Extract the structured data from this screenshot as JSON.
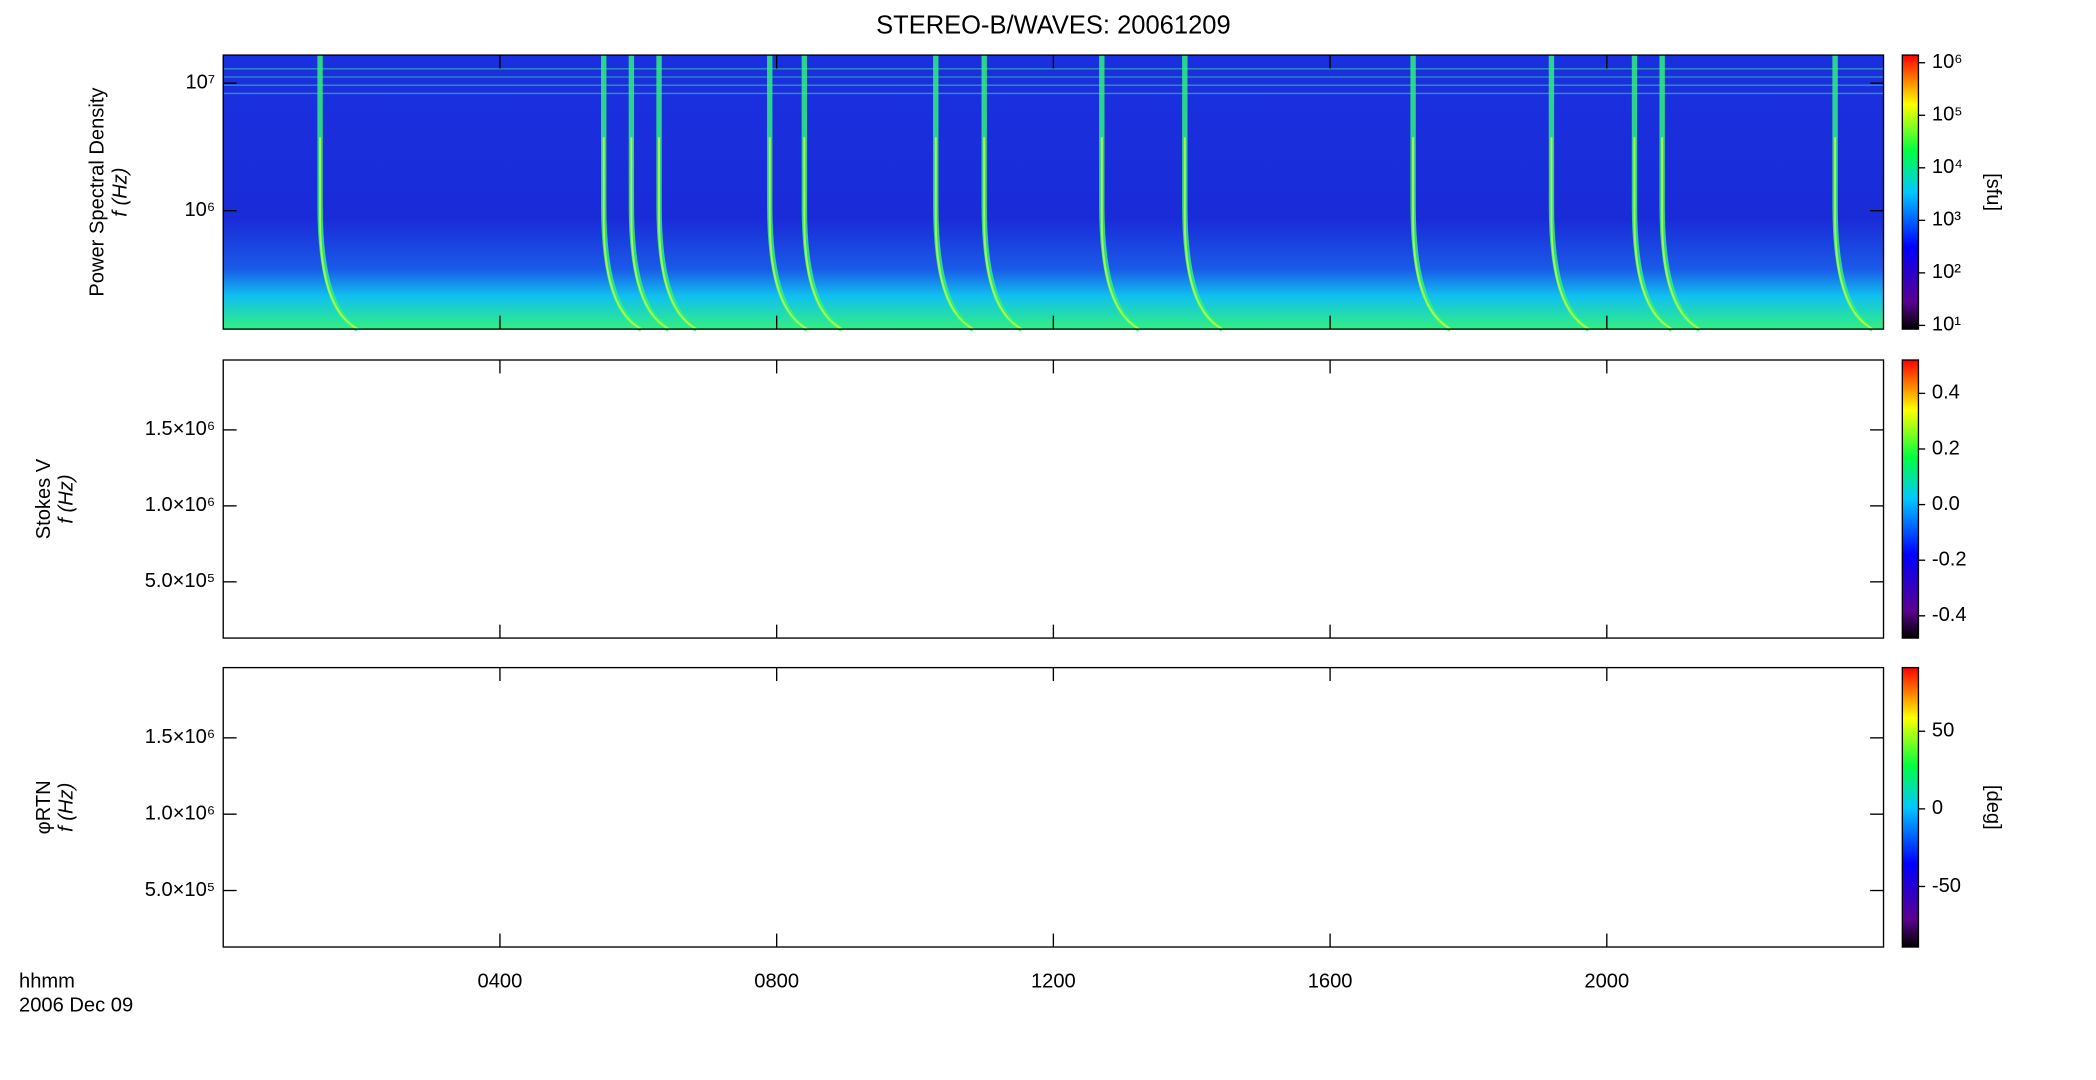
{
  "chart_data": [
    {
      "type": "spectrogram",
      "title": "STEREO-B/WAVES: 20061209",
      "ylabel": [
        "Power Spectral Density",
        "f (Hz)"
      ],
      "ylog": true,
      "ylim": [
        118000,
        16600000
      ],
      "yticks": [
        {
          "value": 1000000,
          "label": "10⁶"
        },
        {
          "value": 10000000,
          "label": "10⁷"
        }
      ],
      "xlim": [
        0,
        24
      ],
      "xticks": [
        4,
        8,
        12,
        16,
        20
      ],
      "burst_times": [
        1.4,
        5.5,
        5.9,
        6.3,
        7.9,
        8.4,
        10.3,
        11.0,
        12.7,
        13.9,
        17.2,
        19.2,
        20.4,
        20.8,
        23.3
      ],
      "zlog": true,
      "zlim": [
        8.5,
        1400000
      ],
      "zlabel": "[sfu]",
      "zticks": [
        {
          "value": 10,
          "label": "10¹"
        },
        {
          "value": 100,
          "label": "10²"
        },
        {
          "value": 1000,
          "label": "10³"
        },
        {
          "value": 10000,
          "label": "10⁴"
        },
        {
          "value": 100000,
          "label": "10⁵"
        },
        {
          "value": 1000000,
          "label": "10⁶"
        }
      ]
    },
    {
      "type": "spectrogram",
      "ylabel": [
        "Stokes V",
        "f (Hz)"
      ],
      "ylim": [
        130000,
        1960000
      ],
      "yticks": [
        {
          "value": 500000,
          "label": "5.0×10⁵"
        },
        {
          "value": 1000000,
          "label": "1.0×10⁶"
        },
        {
          "value": 1500000,
          "label": "1.5×10⁶"
        }
      ],
      "xlim": [
        0,
        24
      ],
      "xticks": [
        4,
        8,
        12,
        16,
        20
      ],
      "zlim": [
        -0.48,
        0.52
      ],
      "zticks": [
        -0.4,
        -0.2,
        {
          "value": 0,
          "label": "0.0"
        },
        0.2,
        0.4
      ]
    },
    {
      "type": "spectrogram",
      "ylabel": [
        "φRTN",
        "f (Hz)"
      ],
      "ylim": [
        130000,
        1960000
      ],
      "yticks": [
        {
          "value": 500000,
          "label": "5.0×10⁵"
        },
        {
          "value": 1000000,
          "label": "1.0×10⁶"
        },
        {
          "value": 1500000,
          "label": "1.5×10⁶"
        }
      ],
      "xlim": [
        0,
        24
      ],
      "xticks": [
        {
          "value": 4,
          "label": "0400"
        },
        {
          "value": 8,
          "label": "0800"
        },
        {
          "value": 12,
          "label": "1200"
        },
        {
          "value": 16,
          "label": "1600"
        },
        {
          "value": 20,
          "label": "2000"
        }
      ],
      "xlabel": "hhmm",
      "date": "2006 Dec 09",
      "zlim": [
        -89,
        91
      ],
      "zlabel": "[deg]",
      "zticks": [
        -50,
        0,
        50
      ]
    }
  ]
}
